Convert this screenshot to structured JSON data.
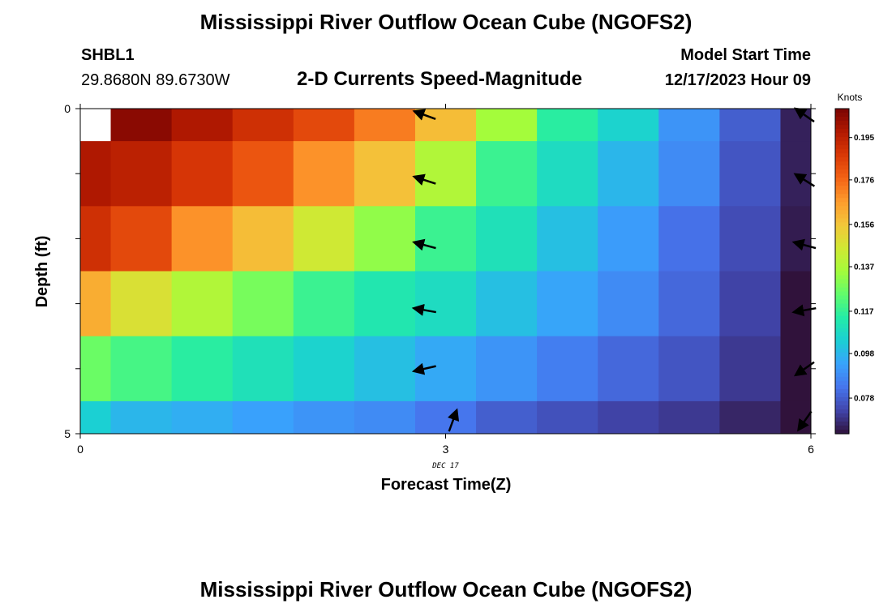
{
  "header": {
    "title": "Mississippi River Outflow Ocean Cube (NGOFS2)",
    "station_id": "SHBL1",
    "station_coords": "29.8680N  89.6730W",
    "model_start_label": "Model Start Time",
    "model_start_value": "12/17/2023 Hour 09"
  },
  "footer": {
    "title": "Mississippi River Outflow Ocean Cube (NGOFS2)"
  },
  "chart_data": {
    "type": "heatmap",
    "title": "2-D Currents Speed-Magnitude",
    "xlabel": "Forecast Time(Z)",
    "ylabel": "Depth (ft)",
    "xlim": [
      0,
      6
    ],
    "ylim": [
      0,
      5
    ],
    "x_ticks": [
      {
        "value": 0,
        "label": "0"
      },
      {
        "value": 3,
        "label": "3"
      },
      {
        "value": 6,
        "label": "6"
      }
    ],
    "y_ticks": [
      {
        "value": 0,
        "label": "0"
      },
      {
        "value": 1,
        "label": ""
      },
      {
        "value": 2,
        "label": ""
      },
      {
        "value": 3,
        "label": ""
      },
      {
        "value": 4,
        "label": ""
      },
      {
        "value": 5,
        "label": "5"
      }
    ],
    "date_label": {
      "x": 3,
      "text": "DEC 17"
    },
    "x_edges": [
      0,
      0.25,
      0.75,
      1.25,
      1.75,
      2.25,
      2.75,
      3.25,
      3.75,
      4.25,
      4.75,
      5.25,
      5.75,
      6
    ],
    "y_edges": [
      0,
      0.5,
      1.5,
      2.5,
      3.5,
      4.5,
      5
    ],
    "values": [
      [
        null,
        0.205,
        0.198,
        0.19,
        0.183,
        0.172,
        0.158,
        0.135,
        0.115,
        0.105,
        0.09,
        0.078,
        0.065
      ],
      [
        0.198,
        0.195,
        0.188,
        0.18,
        0.168,
        0.157,
        0.138,
        0.118,
        0.108,
        0.098,
        0.088,
        0.076,
        0.065
      ],
      [
        0.19,
        0.183,
        0.168,
        0.158,
        0.145,
        0.132,
        0.118,
        0.11,
        0.1,
        0.092,
        0.082,
        0.074,
        0.064
      ],
      [
        0.162,
        0.148,
        0.138,
        0.128,
        0.118,
        0.112,
        0.108,
        0.1,
        0.094,
        0.088,
        0.08,
        0.072,
        0.062
      ],
      [
        0.126,
        0.12,
        0.115,
        0.11,
        0.105,
        0.1,
        0.095,
        0.09,
        0.085,
        0.08,
        0.076,
        0.07,
        0.06
      ],
      [
        0.104,
        0.098,
        0.096,
        0.093,
        0.09,
        0.088,
        0.083,
        0.078,
        0.075,
        0.072,
        0.07,
        0.066,
        0.058
      ]
    ],
    "vectors": [
      {
        "x": 2.83,
        "y": 0.1,
        "angle": 160
      },
      {
        "x": 2.83,
        "y": 1.1,
        "angle": 162
      },
      {
        "x": 2.83,
        "y": 2.1,
        "angle": 165
      },
      {
        "x": 2.83,
        "y": 3.1,
        "angle": 170
      },
      {
        "x": 2.83,
        "y": 4.0,
        "angle": 193
      },
      {
        "x": 3.06,
        "y": 4.8,
        "angle": 70
      },
      {
        "x": 5.95,
        "y": 0.1,
        "angle": 145
      },
      {
        "x": 5.95,
        "y": 1.1,
        "angle": 148
      },
      {
        "x": 5.95,
        "y": 2.1,
        "angle": 165
      },
      {
        "x": 5.95,
        "y": 3.1,
        "angle": 190
      },
      {
        "x": 5.95,
        "y": 4.0,
        "angle": 215
      },
      {
        "x": 5.95,
        "y": 4.8,
        "angle": 235
      }
    ],
    "colorbar": {
      "title": "Knots",
      "min": 0.062,
      "max": 0.208,
      "ticks": [
        0.195,
        0.176,
        0.156,
        0.137,
        0.117,
        0.098,
        0.078
      ]
    },
    "colormap": [
      "#30123b",
      "#4145ab",
      "#4675ed",
      "#39a2fc",
      "#1bcfd4",
      "#24eca6",
      "#61fc6c",
      "#a4fc3b",
      "#d1e834",
      "#f3c63a",
      "#fe9b2d",
      "#f36315",
      "#d93806",
      "#b11901",
      "#7a0402"
    ]
  }
}
